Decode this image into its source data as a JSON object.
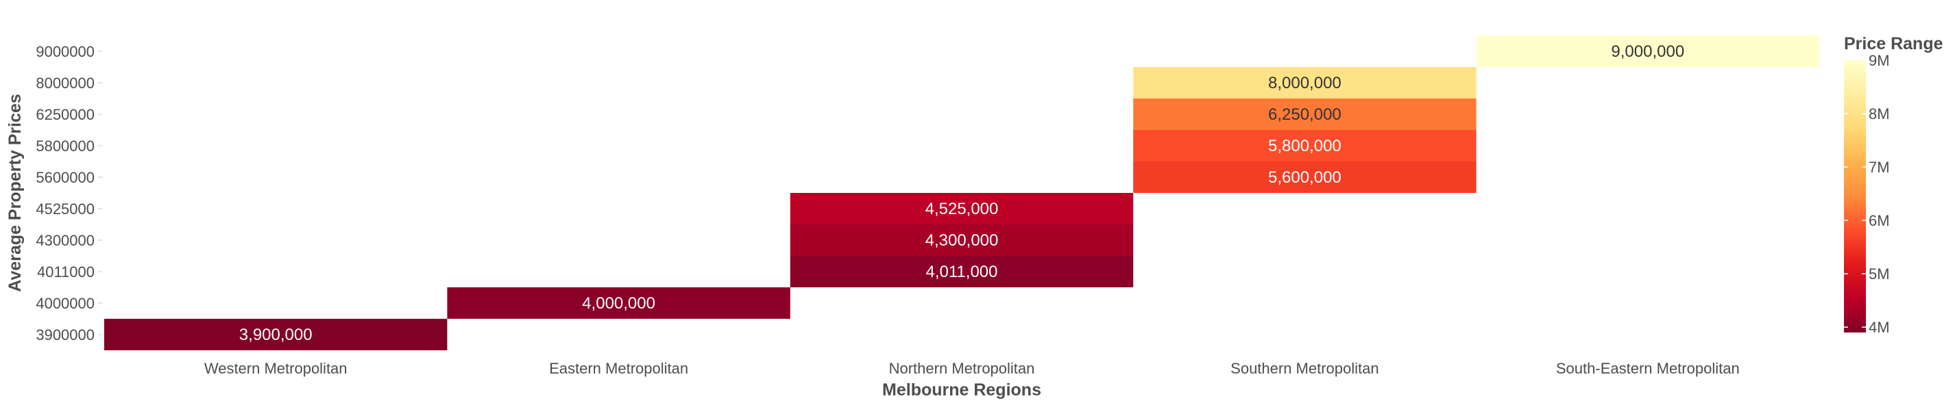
{
  "chart_data": {
    "type": "heatmap",
    "title": "",
    "xlabel": "Melbourne Regions",
    "ylabel": "Average Property Prices",
    "x_categories": [
      "Western Metropolitan",
      "Eastern Metropolitan",
      "Northern Metropolitan",
      "Southern Metropolitan",
      "South-Eastern Metropolitan"
    ],
    "y_categories": [
      "3900000",
      "4000000",
      "4011000",
      "4300000",
      "4525000",
      "5600000",
      "5800000",
      "6250000",
      "8000000",
      "9000000"
    ],
    "cells": [
      {
        "x": "Western Metropolitan",
        "y": "3900000",
        "value": 3900000,
        "label": "3,900,000"
      },
      {
        "x": "Eastern Metropolitan",
        "y": "4000000",
        "value": 4000000,
        "label": "4,000,000"
      },
      {
        "x": "Northern Metropolitan",
        "y": "4011000",
        "value": 4011000,
        "label": "4,011,000"
      },
      {
        "x": "Northern Metropolitan",
        "y": "4300000",
        "value": 4300000,
        "label": "4,300,000"
      },
      {
        "x": "Northern Metropolitan",
        "y": "4525000",
        "value": 4525000,
        "label": "4,525,000"
      },
      {
        "x": "Southern Metropolitan",
        "y": "5600000",
        "value": 5600000,
        "label": "5,600,000"
      },
      {
        "x": "Southern Metropolitan",
        "y": "5800000",
        "value": 5800000,
        "label": "5,800,000"
      },
      {
        "x": "Southern Metropolitan",
        "y": "6250000",
        "value": 6250000,
        "label": "6,250,000"
      },
      {
        "x": "Southern Metropolitan",
        "y": "8000000",
        "value": 8000000,
        "label": "8,000,000"
      },
      {
        "x": "South-Eastern Metropolitan",
        "y": "9000000",
        "value": 9000000,
        "label": "9,000,000"
      }
    ],
    "colorscale": {
      "name": "YlOrRd (reversed)",
      "min": 3900000,
      "max": 9000000,
      "stops": [
        "#800026",
        "#bd0026",
        "#e31a1c",
        "#fc4e2a",
        "#fd8d3c",
        "#feb24c",
        "#fed976",
        "#ffeda0",
        "#ffffcc"
      ]
    },
    "legend": {
      "title": "Price Range",
      "placement": "right",
      "ticks": [
        {
          "value": 4000000,
          "label": "4M"
        },
        {
          "value": 5000000,
          "label": "5M"
        },
        {
          "value": 6000000,
          "label": "6M"
        },
        {
          "value": 7000000,
          "label": "7M"
        },
        {
          "value": 8000000,
          "label": "8M"
        },
        {
          "value": 9000000,
          "label": "9M"
        }
      ]
    },
    "grid": false
  }
}
